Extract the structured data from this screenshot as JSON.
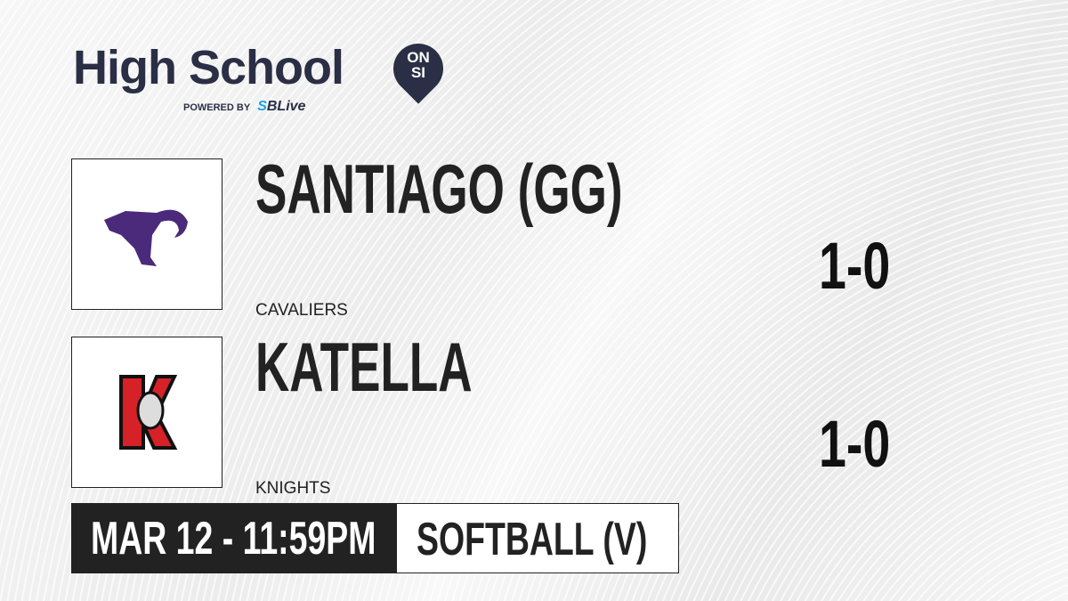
{
  "brand": {
    "title": "High School",
    "badge_line1": "ON",
    "badge_line2": "SI",
    "powered_by": "POWERED BY",
    "partner_prefix": "S",
    "partner": "SBLive"
  },
  "teams": [
    {
      "name": "SANTIAGO (GG)",
      "mascot": "CAVALIERS",
      "record": "1-0",
      "logo_color": "#4b2a7b",
      "logo_icon": "cavalier-logo"
    },
    {
      "name": "KATELLA",
      "mascot": "KNIGHTS",
      "record": "1-0",
      "logo_color": "#d62128",
      "logo_icon": "knight-k-logo"
    }
  ],
  "game": {
    "datetime": "MAR 12 - 11:59PM",
    "sport": "SOFTBALL (V)"
  }
}
